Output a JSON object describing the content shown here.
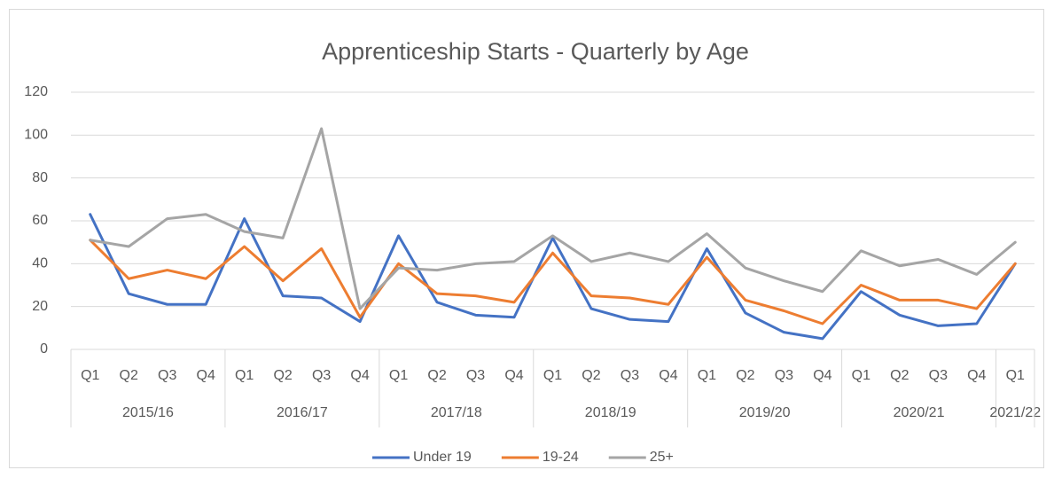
{
  "chart_data": {
    "type": "line",
    "title": "Apprenticeship Starts - Quarterly by Age",
    "categories": [
      "Q1",
      "Q2",
      "Q3",
      "Q4",
      "Q1",
      "Q2",
      "Q3",
      "Q4",
      "Q1",
      "Q2",
      "Q3",
      "Q4",
      "Q1",
      "Q2",
      "Q3",
      "Q4",
      "Q1",
      "Q2",
      "Q3",
      "Q4",
      "Q1",
      "Q2",
      "Q3",
      "Q4",
      "Q1"
    ],
    "groups": [
      {
        "label": "2015/16",
        "size": 4
      },
      {
        "label": "2016/17",
        "size": 4
      },
      {
        "label": "2017/18",
        "size": 4
      },
      {
        "label": "2018/19",
        "size": 4
      },
      {
        "label": "2019/20",
        "size": 4
      },
      {
        "label": "2020/21",
        "size": 4
      },
      {
        "label": "2021/22",
        "size": 1
      }
    ],
    "series": [
      {
        "name": "Under 19",
        "color": "#4472c4",
        "values": [
          63,
          26,
          21,
          21,
          61,
          25,
          24,
          13,
          53,
          22,
          16,
          15,
          52,
          19,
          14,
          13,
          47,
          17,
          8,
          5,
          27,
          16,
          11,
          12,
          40
        ]
      },
      {
        "name": "19-24",
        "color": "#ed7d31",
        "values": [
          51,
          33,
          37,
          33,
          48,
          32,
          47,
          15,
          40,
          26,
          25,
          22,
          45,
          25,
          24,
          21,
          43,
          23,
          18,
          12,
          30,
          23,
          23,
          19,
          40
        ]
      },
      {
        "name": "25+",
        "color": "#a5a5a5",
        "values": [
          51,
          48,
          61,
          63,
          55,
          52,
          103,
          19,
          38,
          37,
          40,
          41,
          53,
          41,
          45,
          41,
          54,
          38,
          32,
          27,
          46,
          39,
          42,
          35,
          50
        ]
      }
    ],
    "ylim": [
      0,
      120
    ],
    "yticks": [
      0,
      20,
      40,
      60,
      80,
      100,
      120
    ],
    "grid": true,
    "legend": "bottom"
  }
}
